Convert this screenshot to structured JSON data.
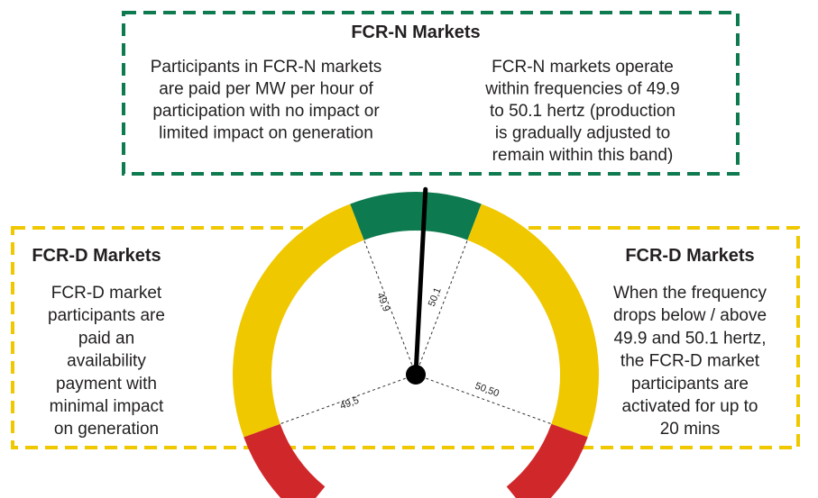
{
  "fcr_n": {
    "title": "FCR-N Markets",
    "left_text": [
      "Participants in FCR-N markets",
      "are paid per MW per hour of",
      "participation with no impact or",
      "limited impact on generation"
    ],
    "right_text": [
      "FCR-N markets operate",
      "within frequencies of 49.9",
      "to 50.1 hertz (production",
      "is gradually adjusted to",
      "remain within this band)"
    ]
  },
  "fcr_d_left": {
    "title": "FCR-D Markets",
    "text": [
      "FCR-D market",
      "participants are",
      "paid an",
      "availability",
      "payment with",
      "minimal impact",
      "on generation"
    ]
  },
  "fcr_d_right": {
    "title": "FCR-D Markets",
    "text": [
      "When the frequency",
      "drops below / above",
      "49.9 and 50.1 hertz,",
      "the FCR-D market",
      "participants are",
      "activated for up to",
      "20 mins"
    ]
  },
  "gauge": {
    "labels": [
      "49,9",
      "50,1",
      "49,5",
      "50,50"
    ]
  }
}
